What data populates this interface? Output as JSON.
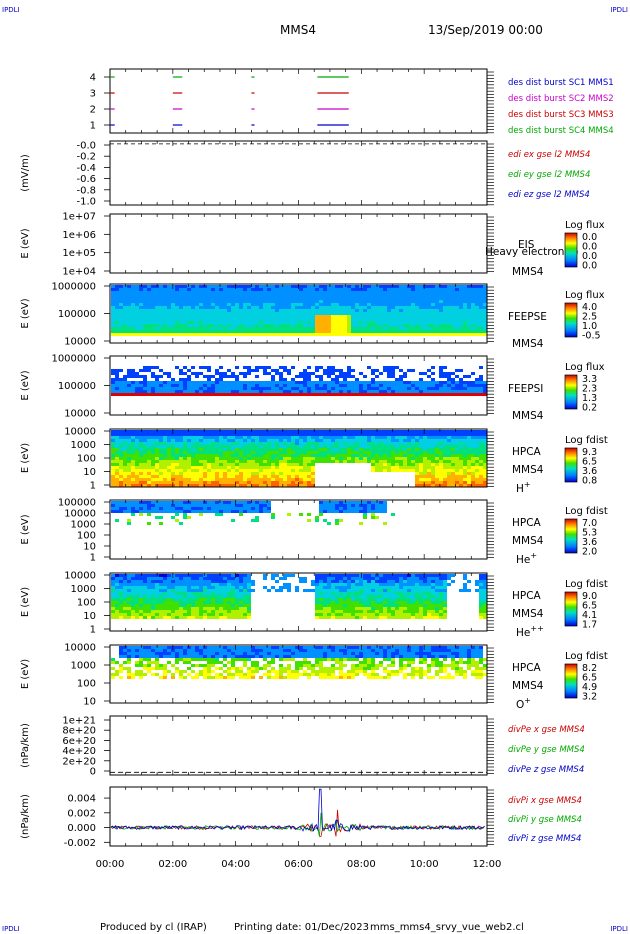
{
  "header": {
    "corner_tl": "IPDLI",
    "corner_tr": "IPDLI",
    "corner_bl": "IPDLI",
    "corner_br": "IPDLI",
    "spacecraft": "MMS4",
    "datetime": "13/Sep/2019 00:00"
  },
  "footer": {
    "produced_by": "Produced by cl (IRAP)",
    "printing_date": "Printing date: 01/Dec/2023",
    "filename": "mms_mms4_srvy_vue_web2.cl"
  },
  "x_ticks": [
    "00:00",
    "02:00",
    "04:00",
    "06:00",
    "08:00",
    "10:00",
    "12:00"
  ],
  "chart_data": [
    {
      "type": "line",
      "panel": "burst",
      "yticks": [
        "1",
        "2",
        "3",
        "4"
      ],
      "ylim": [
        0.5,
        4.5
      ],
      "series": [
        {
          "name": "des dist burst SC1 MMS1",
          "color": "#0000cc",
          "y": 1
        },
        {
          "name": "des dist burst SC2 MMS2",
          "color": "#cc00cc",
          "y": 2
        },
        {
          "name": "des dist burst SC3 MMS3",
          "color": "#cc0000",
          "y": 3
        },
        {
          "name": "des dist burst SC4 MMS4",
          "color": "#00aa00",
          "y": 4
        }
      ],
      "burst_intervals_hours": [
        [
          0.0,
          0.15
        ],
        [
          2.0,
          2.3
        ],
        [
          4.5,
          4.6
        ],
        [
          6.6,
          7.6
        ]
      ]
    },
    {
      "type": "line",
      "panel": "edi",
      "ylabel": "(mV/m)",
      "yticks": [
        "-0.0",
        "-0.2",
        "-0.4",
        "-0.6",
        "-0.8",
        "-1.0"
      ],
      "ylim": [
        -1.05,
        0.05
      ],
      "series": [
        {
          "name": "edi ex gse l2 MMS4",
          "color": "#cc0000"
        },
        {
          "name": "edi ey gse l2 MMS4",
          "color": "#00aa00"
        },
        {
          "name": "edi ez gse l2 MMS4",
          "color": "#0000cc"
        }
      ],
      "reference_level": 0.0
    },
    {
      "type": "heatmap",
      "panel": "eis",
      "ylabel": "E (eV)",
      "yticks": [
        "1e+07",
        "1e+06",
        "1e+05",
        "1e+04"
      ],
      "scale": "log",
      "label_top": "EIS",
      "label_overlap": "Heavy electron to",
      "label_bottom": "MMS4",
      "colorbar_title": "Log flux",
      "colorbar_ticks": [
        "0.0",
        "0.0",
        "0.0",
        "0.0"
      ]
    },
    {
      "type": "heatmap",
      "panel": "feepse",
      "ylabel": "E (eV)",
      "yticks": [
        "1000000",
        "100000",
        "10000"
      ],
      "scale": "log",
      "label_top": "FEEPSE",
      "label_bottom": "MMS4",
      "colorbar_title": "Log flux",
      "colorbar_ticks": [
        "4.0",
        "2.5",
        "1.0",
        "-0.5"
      ]
    },
    {
      "type": "heatmap",
      "panel": "feepsi",
      "ylabel": "E (eV)",
      "yticks": [
        "1000000",
        "100000",
        "10000"
      ],
      "scale": "log",
      "label_top": "FEEPSI",
      "label_bottom": "MMS4",
      "colorbar_title": "Log flux",
      "colorbar_ticks": [
        "3.3",
        "2.3",
        "1.3",
        "0.2"
      ]
    },
    {
      "type": "heatmap",
      "panel": "hpca_h",
      "ylabel": "E (eV)",
      "yticks": [
        "10000",
        "1000",
        "100",
        "10",
        "1"
      ],
      "scale": "log",
      "label_top": "HPCA",
      "label_mid": "MMS4",
      "species": "H",
      "species_sup": "+",
      "colorbar_title": "Log fdist",
      "colorbar_ticks": [
        "9.3",
        "6.5",
        "3.6",
        "0.8"
      ]
    },
    {
      "type": "heatmap",
      "panel": "hpca_he",
      "ylabel": "E (eV)",
      "yticks": [
        "100000",
        "10000",
        "1000",
        "100",
        "10",
        "1"
      ],
      "scale": "log",
      "label_top": "HPCA",
      "label_mid": "MMS4",
      "species": "He",
      "species_sup": "+",
      "colorbar_title": "Log fdist",
      "colorbar_ticks": [
        "7.0",
        "5.3",
        "3.6",
        "2.0"
      ]
    },
    {
      "type": "heatmap",
      "panel": "hpca_hepp",
      "ylabel": "E (eV)",
      "yticks": [
        "10000",
        "1000",
        "100",
        "10",
        "1"
      ],
      "scale": "log",
      "label_top": "HPCA",
      "label_mid": "MMS4",
      "species": "He",
      "species_sup": "++",
      "colorbar_title": "Log fdist",
      "colorbar_ticks": [
        "9.0",
        "6.5",
        "4.1",
        "1.7"
      ]
    },
    {
      "type": "heatmap",
      "panel": "hpca_o",
      "ylabel": "E (eV)",
      "yticks": [
        "10000",
        "1000",
        "100",
        "10"
      ],
      "scale": "log",
      "label_top": "HPCA",
      "label_mid": "MMS4",
      "species": "O",
      "species_sup": "+",
      "colorbar_title": "Log fdist",
      "colorbar_ticks": [
        "8.2",
        "6.5",
        "4.9",
        "3.2"
      ]
    },
    {
      "type": "line",
      "panel": "divpe",
      "ylabel": "(nPa/km)",
      "yticks": [
        "1e+21",
        "8e+20",
        "6e+20",
        "4e+20",
        "2e+20",
        "0"
      ],
      "ylim": [
        -5e+19,
        1.05e+21
      ],
      "series": [
        {
          "name": "divPe x gse MMS4",
          "color": "#cc0000"
        },
        {
          "name": "divPe y gse MMS4",
          "color": "#00aa00"
        },
        {
          "name": "divPe z gse MMS4",
          "color": "#0000cc"
        }
      ],
      "reference_level": 0
    },
    {
      "type": "line",
      "panel": "divpi",
      "ylabel": "(nPa/km)",
      "yticks": [
        "0.004",
        "0.002",
        "0.000",
        "-0.002"
      ],
      "ylim": [
        -0.0025,
        0.0055
      ],
      "series": [
        {
          "name": "divPi x gse MMS4",
          "color": "#cc0000"
        },
        {
          "name": "divPi y gse MMS4",
          "color": "#00aa00"
        },
        {
          "name": "divPi z gse MMS4",
          "color": "#0000cc"
        }
      ],
      "spike_hours": [
        6.7,
        7.2
      ]
    }
  ]
}
